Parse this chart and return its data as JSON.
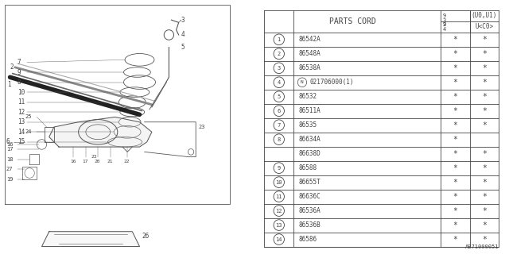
{
  "title": "AB71000051",
  "bg_color": "#ffffff",
  "table_header": "PARTS CORD",
  "rows": [
    {
      "num": "1",
      "part": "86542A",
      "c1": "*",
      "c2": "*"
    },
    {
      "num": "2",
      "part": "86548A",
      "c1": "*",
      "c2": "*"
    },
    {
      "num": "3",
      "part": "86538A",
      "c1": "*",
      "c2": "*"
    },
    {
      "num": "4",
      "part": "N021706000(1)",
      "c1": "*",
      "c2": "*",
      "n_prefix": true
    },
    {
      "num": "5",
      "part": "86532",
      "c1": "*",
      "c2": "*"
    },
    {
      "num": "6",
      "part": "86511A",
      "c1": "*",
      "c2": "*"
    },
    {
      "num": "7",
      "part": "86535",
      "c1": "*",
      "c2": "*"
    },
    {
      "num": "8",
      "part": "86634A",
      "c1": "*",
      "c2": "",
      "span_top": true
    },
    {
      "num": "",
      "part": "86638D",
      "c1": "*",
      "c2": "*",
      "span_bot": true
    },
    {
      "num": "9",
      "part": "86588",
      "c1": "*",
      "c2": "*"
    },
    {
      "num": "10",
      "part": "86655T",
      "c1": "*",
      "c2": "*"
    },
    {
      "num": "11",
      "part": "86636C",
      "c1": "*",
      "c2": "*"
    },
    {
      "num": "12",
      "part": "86536A",
      "c1": "*",
      "c2": "*"
    },
    {
      "num": "13",
      "part": "86536B",
      "c1": "*",
      "c2": "*"
    },
    {
      "num": "14",
      "part": "86586",
      "c1": "*",
      "c2": "*"
    }
  ],
  "gray": "#444444",
  "line_color": "#555555"
}
